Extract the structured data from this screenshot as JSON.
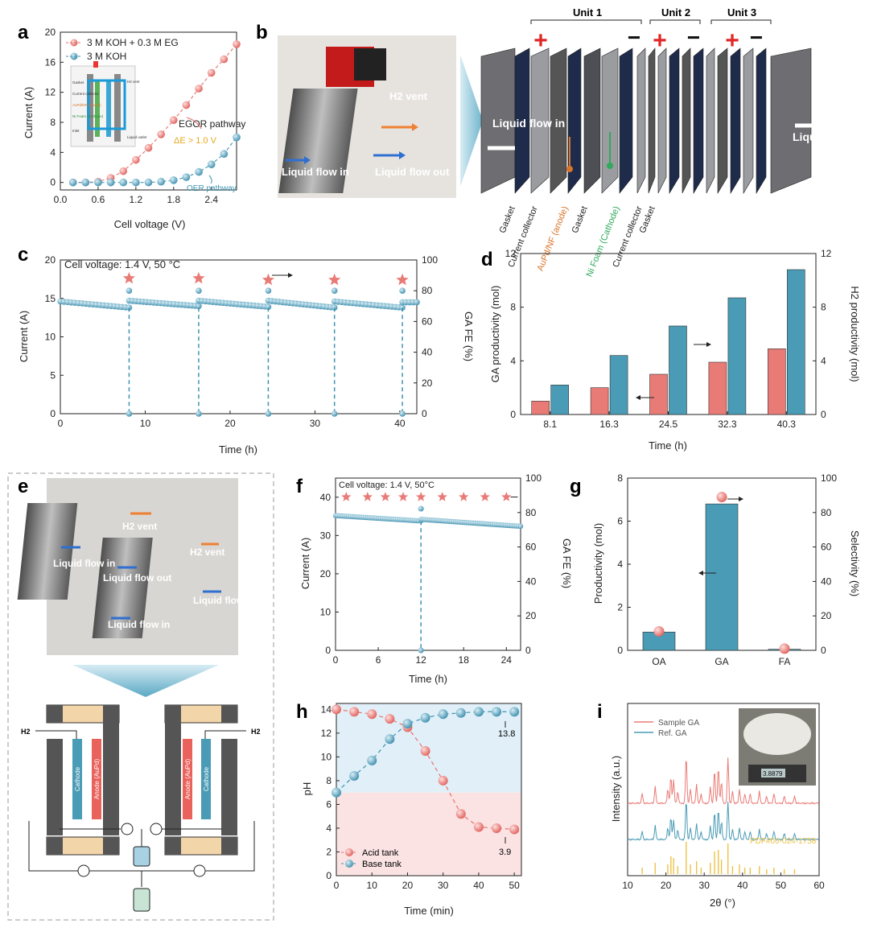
{
  "panel_letters": [
    "a",
    "b",
    "c",
    "d",
    "e",
    "f",
    "g",
    "h",
    "i"
  ],
  "colors": {
    "red": "#e97b76",
    "blue": "#4a9bb5",
    "blue_dark": "#2d7f99",
    "dashed_red": "#e06b66",
    "dashed_blue": "#3d93b0",
    "xrd_ref": "#ecc246"
  },
  "panel_b": {
    "photo_labels": {
      "h2_vent": "H2 vent",
      "liquid_in": "Liquid flow in",
      "liquid_out": "Liquid flow out"
    },
    "units": [
      "Unit 1",
      "Unit 2",
      "Unit 3"
    ],
    "exploded_labels": {
      "liquid_in": "Liquid flow in",
      "h2_vent": "H2 vent",
      "liquid_out": "Liquid flow out"
    },
    "components": [
      "Gasket",
      "Current collector",
      "AuPd/NF (anode)",
      "Gasket",
      "Ni Foam (Cathode)",
      "Current collector",
      "Gasket"
    ],
    "plus": "+",
    "minus": "−"
  },
  "panel_e": {
    "labels": {
      "h2_vent_1": "H2 vent",
      "h2_vent_2": "H2 vent",
      "liquid_in_1": "Liquid flow in",
      "liquid_out_1": "Liquid flow out",
      "liquid_out_2": "Liquid flow out",
      "liquid_in_2": "Liquid flow in"
    },
    "schematic": {
      "h2_left": "H2",
      "h2_right": "H2",
      "cathode": "Cathode",
      "anode": "Anode (AuPd)"
    }
  },
  "chart_data": [
    {
      "id": "a",
      "type": "scatter",
      "xlabel": "Cell voltage (V)",
      "ylabel": "Current (A)",
      "xlim": [
        0,
        2.8
      ],
      "ylim": [
        -1,
        20
      ],
      "xticks": [
        "0.0",
        "0.6",
        "1.2",
        "1.8",
        "2.4"
      ],
      "yticks": [
        "0",
        "4",
        "8",
        "12",
        "16",
        "20"
      ],
      "series": [
        {
          "name": "3 M KOH + 0.3 M EG",
          "color": "#e97b76",
          "x": [
            0.2,
            0.4,
            0.6,
            0.8,
            1.0,
            1.2,
            1.4,
            1.6,
            1.8,
            2.0,
            2.2,
            2.4,
            2.6,
            2.8
          ],
          "y": [
            0,
            0,
            0.1,
            0.6,
            1.5,
            3.0,
            4.6,
            6.4,
            8.3,
            10.3,
            12.5,
            14.6,
            16.4,
            18.4
          ]
        },
        {
          "name": "3 M KOH",
          "color": "#4a9bb5",
          "x": [
            0.2,
            0.4,
            0.6,
            0.8,
            1.0,
            1.2,
            1.4,
            1.6,
            1.8,
            2.0,
            2.2,
            2.4,
            2.6,
            2.8
          ],
          "y": [
            0,
            0,
            0,
            0,
            0,
            0,
            0,
            0.1,
            0.3,
            0.7,
            1.4,
            2.4,
            3.8,
            6.0
          ]
        }
      ],
      "annotations": [
        "EGOR pathway",
        "ΔE > 1.0 V",
        "OER pathway"
      ],
      "inset_labels": [
        "Gasket",
        "Current collector",
        "AuPd/NF (Anode)",
        "Ni Foam (Cathode)",
        "Inlet",
        "H2 vent",
        "Liquid outlet"
      ]
    },
    {
      "id": "c",
      "type": "line",
      "title": "Cell voltage: 1.4 V, 50 °C",
      "xlabel": "Time (h)",
      "ylabel": "Current (A)",
      "y2label": "GA FE (%)",
      "xlim": [
        0,
        42
      ],
      "ylim": [
        0,
        20
      ],
      "y2lim": [
        0,
        100
      ],
      "xticks": [
        "0",
        "10",
        "20",
        "30",
        "40"
      ],
      "yticks": [
        "0",
        "5",
        "10",
        "15",
        "20"
      ],
      "y2ticks": [
        "0",
        "20",
        "40",
        "60",
        "80",
        "100"
      ],
      "current_segments": [
        {
          "x": [
            0,
            8.1
          ],
          "y": [
            14.6,
            13.8
          ]
        },
        {
          "x": [
            8.1,
            16.3
          ],
          "y": [
            14.7,
            14.0
          ]
        },
        {
          "x": [
            16.3,
            24.5
          ],
          "y": [
            14.7,
            13.9
          ]
        },
        {
          "x": [
            24.5,
            32.3
          ],
          "y": [
            14.7,
            13.8
          ]
        },
        {
          "x": [
            32.3,
            40.3
          ],
          "y": [
            14.6,
            13.8
          ]
        },
        {
          "x": [
            40.3,
            42
          ],
          "y": [
            14.5,
            14.5
          ]
        }
      ],
      "fe_x": [
        8.1,
        16.3,
        24.5,
        32.3,
        40.3
      ],
      "fe_y": [
        88,
        88,
        87,
        87,
        87
      ]
    },
    {
      "id": "d",
      "type": "bar",
      "xlabel": "Time (h)",
      "ylabel": "GA productivity (mol)",
      "y2label": "H2 productivity (mol)",
      "categories": [
        "8.1",
        "16.3",
        "24.5",
        "32.3",
        "40.3"
      ],
      "ylim": [
        0,
        12
      ],
      "y2lim": [
        0,
        12
      ],
      "yticks": [
        "0",
        "4",
        "8",
        "12"
      ],
      "y2ticks": [
        "0",
        "4",
        "8",
        "12"
      ],
      "series": [
        {
          "name": "GA",
          "color": "#e97b76",
          "values": [
            1.0,
            2.0,
            3.0,
            3.9,
            4.9
          ]
        },
        {
          "name": "H2",
          "color": "#4a9bb5",
          "values": [
            2.2,
            4.4,
            6.6,
            8.7,
            10.8
          ]
        }
      ]
    },
    {
      "id": "f",
      "type": "line",
      "title": "Cell voltage: 1.4 V, 50°C",
      "xlabel": "Time (h)",
      "ylabel": "Current (A)",
      "y2label": "GA FE (%)",
      "xlim": [
        0,
        26
      ],
      "ylim": [
        0,
        45
      ],
      "y2lim": [
        0,
        100
      ],
      "xticks": [
        "0",
        "6",
        "12",
        "18",
        "24"
      ],
      "yticks": [
        "0",
        "10",
        "20",
        "30",
        "40"
      ],
      "y2ticks": [
        "0",
        "20",
        "40",
        "60",
        "80",
        "100"
      ],
      "current_segments": [
        {
          "x": [
            0,
            12
          ],
          "y": [
            35.2,
            33.8
          ]
        },
        {
          "x": [
            12,
            26
          ],
          "y": [
            34.2,
            32.4
          ]
        }
      ],
      "fe_x": [
        1.5,
        4.5,
        7,
        9.5,
        12,
        15,
        18,
        21,
        24
      ],
      "fe_y": [
        89,
        89,
        89,
        89,
        89,
        89,
        89,
        89,
        89
      ]
    },
    {
      "id": "g",
      "type": "bar",
      "xlabel": "",
      "ylabel": "Productivity (mol)",
      "y2label": "Selectivity (%)",
      "categories": [
        "OA",
        "GA",
        "FA"
      ],
      "ylim": [
        0,
        8
      ],
      "y2lim": [
        0,
        100
      ],
      "yticks": [
        "0",
        "2",
        "4",
        "6",
        "8"
      ],
      "y2ticks": [
        "0",
        "20",
        "40",
        "60",
        "80",
        "100"
      ],
      "bar_values": [
        0.85,
        6.8,
        0.05
      ],
      "selectivity": [
        11,
        89,
        1
      ]
    },
    {
      "id": "h",
      "type": "line",
      "xlabel": "Time (min)",
      "ylabel": "pH",
      "xlim": [
        0,
        52
      ],
      "ylim": [
        0,
        14.5
      ],
      "xticks": [
        "0",
        "10",
        "20",
        "30",
        "40",
        "50"
      ],
      "yticks": [
        "0",
        "2",
        "4",
        "6",
        "8",
        "10",
        "12",
        "14"
      ],
      "series": [
        {
          "name": "Acid tank",
          "color": "#e97b76",
          "x": [
            0,
            5,
            10,
            15,
            20,
            25,
            30,
            35,
            40,
            45,
            50
          ],
          "y": [
            14.0,
            13.8,
            13.6,
            13.2,
            12.5,
            10.5,
            8.0,
            5.2,
            4.1,
            4.0,
            3.9
          ]
        },
        {
          "name": "Base tank",
          "color": "#4a9bb5",
          "x": [
            0,
            5,
            10,
            15,
            20,
            25,
            30,
            35,
            40,
            45,
            50
          ],
          "y": [
            7.0,
            8.4,
            9.7,
            11.5,
            12.8,
            13.3,
            13.6,
            13.7,
            13.8,
            13.8,
            13.8
          ]
        }
      ],
      "annotations": [
        "13.8",
        "3.9"
      ]
    },
    {
      "id": "i",
      "type": "line",
      "xlabel": "2θ (°)",
      "ylabel": "Intensity (a.u.)",
      "xlim": [
        10,
        60
      ],
      "xticks": [
        "10",
        "20",
        "30",
        "40",
        "50",
        "60"
      ],
      "series": [
        {
          "name": "Sample GA",
          "color": "#e97b76"
        },
        {
          "name": "Ref. GA",
          "color": "#4a9bb5"
        },
        {
          "name": "PDF#00-024-1758",
          "color": "#ecc246"
        }
      ],
      "peaks": [
        13.8,
        17.2,
        20.5,
        21.3,
        22.0,
        23.1,
        25.3,
        26.4,
        28.0,
        29.2,
        31.6,
        32.7,
        33.7,
        34.5,
        36.2,
        37.4,
        39.2,
        40.6,
        42.0,
        44.4,
        46.3,
        48.2,
        50.9,
        53.6
      ],
      "peak_rel": [
        0.2,
        0.35,
        0.3,
        0.55,
        0.5,
        0.25,
        1.0,
        0.3,
        0.4,
        0.2,
        0.35,
        0.7,
        0.75,
        0.45,
        0.95,
        0.25,
        0.3,
        0.2,
        0.2,
        0.25,
        0.15,
        0.2,
        0.15,
        0.15
      ],
      "inset_readout": "3.8879"
    }
  ]
}
